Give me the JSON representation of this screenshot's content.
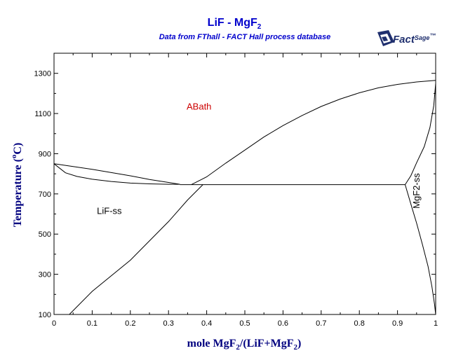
{
  "chart_data": {
    "type": "line",
    "title_main": "LiF - MgF",
    "title_sub": "2",
    "subtitle": "Data from FThall - FACT Hall process database",
    "logo": {
      "text": "Fact",
      "text2": "Sage",
      "mark": "™"
    },
    "xlabel": {
      "a": "mole MgF",
      "b": "2",
      "c": "/(LiF+MgF",
      "d": "2",
      "e": ")"
    },
    "ylabel": {
      "a": "Temperature (",
      "b": "o",
      "c": "C)"
    },
    "xlim": [
      0,
      1
    ],
    "ylim": [
      100,
      1400
    ],
    "xticks": [
      0,
      0.1,
      0.2,
      0.3,
      0.4,
      0.5,
      0.6,
      0.7,
      0.8,
      0.9,
      1
    ],
    "xtick_labels": [
      "0",
      "0.1",
      "0.2",
      "0.3",
      "0.4",
      "0.5",
      "0.6",
      "0.7",
      "0.8",
      "0.9",
      "1"
    ],
    "yticks": [
      100,
      300,
      500,
      700,
      900,
      1100,
      1300
    ],
    "ytick_labels": [
      "100",
      "300",
      "500",
      "700",
      "900",
      "1100",
      "1300"
    ],
    "grid": false,
    "regions": [
      {
        "label": "ABath",
        "x": 0.38,
        "y": 1120,
        "color": "#cc0000",
        "rotate": false
      },
      {
        "label": "LiF-ss",
        "x": 0.145,
        "y": 600,
        "color": "#000000",
        "rotate": false
      },
      {
        "label": "MgF2-ss",
        "x": 0.958,
        "y": 715,
        "color": "#000000",
        "rotate": true
      }
    ],
    "series": [
      {
        "points": [
          [
            0,
            850
          ],
          [
            0.05,
            836
          ],
          [
            0.1,
            822
          ],
          [
            0.15,
            806
          ],
          [
            0.2,
            790
          ],
          [
            0.25,
            772
          ],
          [
            0.3,
            757
          ],
          [
            0.33,
            748
          ]
        ]
      },
      {
        "points": [
          [
            0,
            850
          ],
          [
            0.03,
            805
          ],
          [
            0.06,
            787
          ],
          [
            0.1,
            773
          ],
          [
            0.15,
            762
          ],
          [
            0.2,
            754
          ],
          [
            0.25,
            750
          ],
          [
            0.3,
            748
          ],
          [
            0.33,
            748
          ]
        ]
      },
      {
        "points": [
          [
            0.36,
            746
          ],
          [
            0.4,
            785
          ],
          [
            0.45,
            853
          ],
          [
            0.5,
            918
          ],
          [
            0.55,
            983
          ],
          [
            0.6,
            1040
          ],
          [
            0.65,
            1090
          ],
          [
            0.7,
            1135
          ],
          [
            0.75,
            1172
          ],
          [
            0.8,
            1203
          ],
          [
            0.85,
            1228
          ],
          [
            0.9,
            1245
          ],
          [
            0.95,
            1257
          ],
          [
            1,
            1265
          ]
        ]
      },
      {
        "points": [
          [
            0.33,
            746
          ],
          [
            0.92,
            746
          ]
        ]
      },
      {
        "points": [
          [
            0.04,
            100
          ],
          [
            0.1,
            215
          ],
          [
            0.2,
            370
          ],
          [
            0.3,
            562
          ],
          [
            0.35,
            670
          ],
          [
            0.39,
            746
          ]
        ]
      },
      {
        "points": [
          [
            0.92,
            746
          ],
          [
            0.935,
            790
          ],
          [
            0.95,
            855
          ],
          [
            0.97,
            935
          ],
          [
            0.985,
            1030
          ],
          [
            0.995,
            1140
          ],
          [
            1,
            1250
          ]
        ]
      },
      {
        "points": [
          [
            0.92,
            746
          ],
          [
            0.935,
            650
          ],
          [
            0.95,
            555
          ],
          [
            0.965,
            450
          ],
          [
            0.98,
            340
          ],
          [
            0.99,
            240
          ],
          [
            0.997,
            150
          ],
          [
            1,
            100
          ]
        ]
      }
    ]
  }
}
